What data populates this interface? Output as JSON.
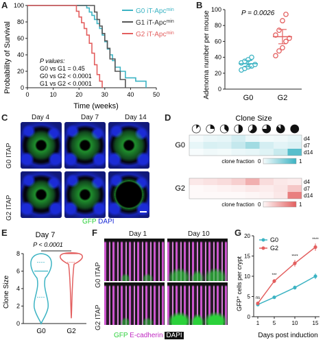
{
  "panels": {
    "A": "A",
    "B": "B",
    "C": "C",
    "D": "D",
    "E": "E",
    "F": "F",
    "G": "G"
  },
  "colors": {
    "g0": "#3bb3c3",
    "g1": "#555555",
    "g2": "#e35f5f",
    "gfp": "#2bd13a",
    "dapi": "#1b2bd6",
    "ecad": "#c02ac2"
  },
  "chart_data": [
    {
      "panel": "A",
      "type": "line",
      "xlabel": "Time (weeks)",
      "ylabel": "Probability of Survival",
      "xlim": [
        0,
        50
      ],
      "ylim": [
        0,
        100
      ],
      "xticks": [
        0,
        10,
        20,
        30,
        40,
        50
      ],
      "yticks": [
        0,
        20,
        40,
        60,
        80,
        100
      ],
      "series": [
        {
          "name": "G0 iT-Apc",
          "sup": "min",
          "color": "#3bb3c3",
          "points": [
            [
              0,
              100
            ],
            [
              22,
              100
            ],
            [
              23,
              97
            ],
            [
              24,
              92
            ],
            [
              25,
              88
            ],
            [
              26,
              83
            ],
            [
              27,
              78
            ],
            [
              28,
              72
            ],
            [
              29,
              64
            ],
            [
              30,
              56
            ],
            [
              31,
              47
            ],
            [
              32,
              40
            ],
            [
              33,
              33
            ],
            [
              34,
              25
            ],
            [
              36,
              20
            ],
            [
              38,
              12
            ],
            [
              42,
              8
            ],
            [
              46,
              0
            ]
          ]
        },
        {
          "name": "G1 iT-Apc",
          "sup": "min",
          "color": "#555555",
          "points": [
            [
              0,
              100
            ],
            [
              24,
              100
            ],
            [
              26,
              92
            ],
            [
              27,
              83
            ],
            [
              28,
              75
            ],
            [
              29,
              66
            ],
            [
              30,
              57
            ],
            [
              31,
              48
            ],
            [
              32,
              35
            ],
            [
              34,
              20
            ],
            [
              36,
              10
            ],
            [
              38,
              0
            ]
          ]
        },
        {
          "name": "G2 iT-Apc",
          "sup": "min",
          "color": "#e35f5f",
          "points": [
            [
              0,
              100
            ],
            [
              18,
              100
            ],
            [
              19,
              93
            ],
            [
              20,
              86
            ],
            [
              21,
              79
            ],
            [
              22,
              72
            ],
            [
              23,
              64
            ],
            [
              24,
              54
            ],
            [
              25,
              42
            ],
            [
              26,
              28
            ],
            [
              27,
              16
            ],
            [
              28,
              8
            ],
            [
              29,
              0
            ]
          ]
        }
      ],
      "annotation_title": "P values:",
      "annotations": [
        "G0 vs G1 = 0.45",
        "G0 vs G2 < 0.0001",
        "G1 vs G2 < 0.0001"
      ]
    },
    {
      "panel": "B",
      "type": "scatter",
      "ylabel": "Adenoma number per mouse",
      "categories": [
        "G0",
        "G2"
      ],
      "ylim": [
        0,
        100
      ],
      "yticks": [
        0,
        20,
        40,
        60,
        80,
        100
      ],
      "pvalue": "P = 0.0026",
      "series": [
        {
          "name": "G0",
          "color": "#3bb3c3",
          "mean": 32,
          "sem": 4,
          "values": [
            24,
            26,
            28,
            29,
            31,
            33,
            35,
            37,
            40
          ]
        },
        {
          "name": "G2",
          "color": "#e35f5f",
          "mean": 66,
          "sem": 9,
          "values": [
            42,
            48,
            52,
            60,
            64,
            68,
            74,
            86,
            94
          ]
        }
      ]
    },
    {
      "panel": "D",
      "type": "heatmap",
      "title": "Clone Size",
      "rows": [
        "d4",
        "d7",
        "d14"
      ],
      "columns": [
        1,
        2,
        3,
        4,
        5,
        6,
        7,
        8
      ],
      "legend_label": "clone fraction",
      "legend_min": "0",
      "legend_max": "1",
      "groups": [
        {
          "name": "G0",
          "color": "#3bb3c3",
          "values": [
            [
              0.05,
              0.1,
              0.12,
              0.22,
              0.1,
              0.06,
              0.08,
              0.12
            ],
            [
              0.12,
              0.2,
              0.18,
              0.3,
              0.48,
              0.22,
              0.14,
              0.18
            ],
            [
              0.04,
              0.08,
              0.06,
              0.1,
              0.12,
              0.16,
              0.28,
              0.85
            ]
          ]
        },
        {
          "name": "G2",
          "color": "#e35f5f",
          "values": [
            [
              0.14,
              0.18,
              0.22,
              0.3,
              0.5,
              0.22,
              0.14,
              0.12
            ],
            [
              0.04,
              0.06,
              0.08,
              0.1,
              0.14,
              0.12,
              0.16,
              0.35
            ],
            [
              0.02,
              0.03,
              0.04,
              0.04,
              0.06,
              0.08,
              0.14,
              0.8
            ]
          ]
        }
      ]
    },
    {
      "panel": "E",
      "type": "violin",
      "title": "Day 7",
      "pvalue": "P < 0.0001",
      "ylabel": "Clone Size",
      "categories": [
        "G0",
        "G2"
      ],
      "ylim": [
        0,
        8
      ],
      "yticks": [
        0,
        2,
        4,
        6,
        8
      ],
      "series": [
        {
          "name": "G0",
          "color": "#3bb3c3",
          "median": 6,
          "q1": 3,
          "q3": 7
        },
        {
          "name": "G2",
          "color": "#e35f5f",
          "median": 8,
          "q1": 7,
          "q3": 8
        }
      ]
    },
    {
      "panel": "G",
      "type": "line",
      "xlabel": "Days post induction",
      "ylabel": "GFP",
      "ylabel_sup": "+",
      "ylabel_rest": " cells per crypt",
      "x": [
        1,
        5,
        10,
        15
      ],
      "xlim": [
        0,
        16
      ],
      "ylim": [
        0,
        20
      ],
      "yticks": [
        0,
        5,
        10,
        15,
        20
      ],
      "significance": [
        "ns",
        "***",
        "****",
        "****"
      ],
      "series": [
        {
          "name": "G0",
          "color": "#3bb3c3",
          "values": [
            3.0,
            4.8,
            7.2,
            10.0
          ],
          "err": [
            0.4,
            0.4,
            0.5,
            0.7
          ]
        },
        {
          "name": "G2",
          "color": "#e35f5f",
          "values": [
            3.3,
            8.8,
            13.2,
            17.2
          ],
          "err": [
            0.4,
            0.5,
            0.8,
            0.9
          ]
        }
      ]
    }
  ],
  "panel_c": {
    "days": [
      "Day 4",
      "Day 7",
      "Day 14"
    ],
    "rows": [
      "G0 ITAP",
      "G2 ITAP"
    ],
    "legend_gfp": "GFP",
    "legend_dapi": "DAPI"
  },
  "panel_f": {
    "days": [
      "Day 1",
      "Day 10"
    ],
    "rows": [
      "G0 ITAP",
      "G2 ITAP"
    ],
    "legend_gfp": "GFP",
    "legend_ecad": "E-cadherin",
    "legend_dapi": "DAPI"
  }
}
